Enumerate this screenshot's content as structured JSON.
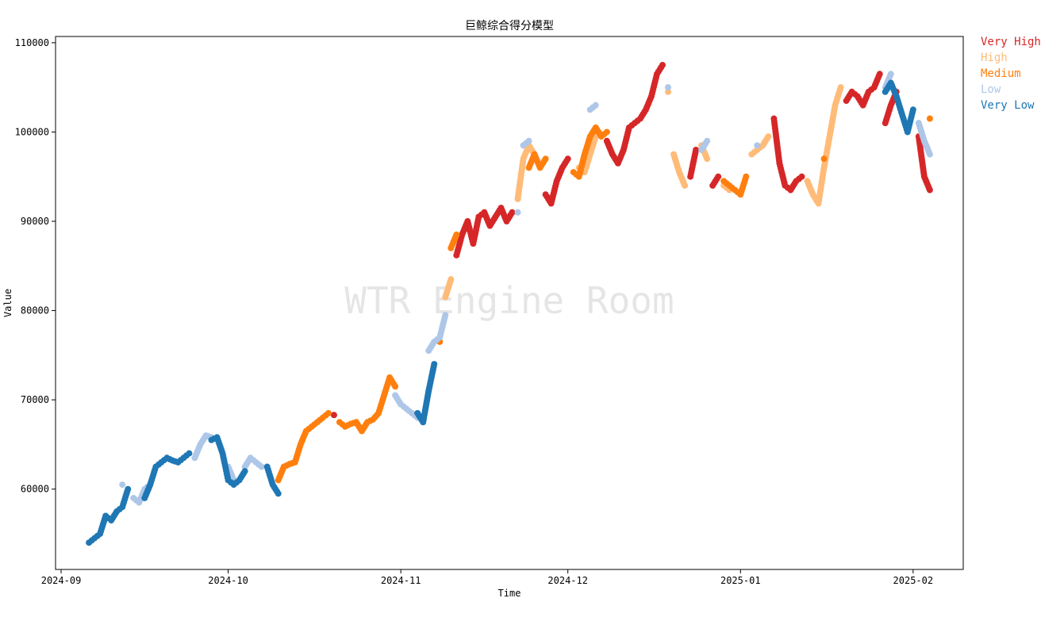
{
  "chart_data": {
    "type": "scatter",
    "title": "巨鲸综合得分模型",
    "xlabel": "Time",
    "ylabel": "Value",
    "watermark": "WTR Engine Room",
    "x_range": [
      "2024-08-31",
      "2025-02-10"
    ],
    "ylim": [
      51000,
      110700
    ],
    "x_ticks": [
      {
        "date": "2024-09-01",
        "label": "2024-09"
      },
      {
        "date": "2024-10-01",
        "label": "2024-10"
      },
      {
        "date": "2024-11-01",
        "label": "2024-11"
      },
      {
        "date": "2024-12-01",
        "label": "2024-12"
      },
      {
        "date": "2025-01-01",
        "label": "2025-01"
      },
      {
        "date": "2025-02-01",
        "label": "2025-02"
      }
    ],
    "y_ticks": [
      {
        "value": 60000,
        "label": "60000"
      },
      {
        "value": 70000,
        "label": "70000"
      },
      {
        "value": 80000,
        "label": "80000"
      },
      {
        "value": 90000,
        "label": "90000"
      },
      {
        "value": 100000,
        "label": "100000"
      },
      {
        "value": 110000,
        "label": "110000"
      }
    ],
    "grid": false,
    "legend_position": "outside-top-right",
    "series": [
      {
        "name": "Very High",
        "color": "#d62728",
        "points": [
          [
            "2024-10-20",
            68300
          ],
          [
            "2024-11-11",
            86200
          ],
          [
            "2024-11-12",
            88500
          ],
          [
            "2024-11-13",
            90000
          ],
          [
            "2024-11-14",
            87500
          ],
          [
            "2024-11-15",
            90500
          ],
          [
            "2024-11-16",
            91000
          ],
          [
            "2024-11-17",
            89500
          ],
          [
            "2024-11-18",
            90500
          ],
          [
            "2024-11-19",
            91500
          ],
          [
            "2024-11-20",
            90000
          ],
          [
            "2024-11-21",
            91000
          ],
          [
            "2024-11-27",
            93000
          ],
          [
            "2024-11-28",
            92000
          ],
          [
            "2024-11-29",
            94500
          ],
          [
            "2024-11-30",
            96000
          ],
          [
            "2024-12-01",
            97000
          ],
          [
            "2024-12-08",
            99000
          ],
          [
            "2024-12-09",
            97500
          ],
          [
            "2024-12-10",
            96500
          ],
          [
            "2024-12-11",
            98000
          ],
          [
            "2024-12-12",
            100500
          ],
          [
            "2024-12-13",
            101000
          ],
          [
            "2024-12-14",
            101500
          ],
          [
            "2024-12-15",
            102500
          ],
          [
            "2024-12-16",
            104000
          ],
          [
            "2024-12-17",
            106500
          ],
          [
            "2024-12-18",
            107500
          ],
          [
            "2024-12-23",
            95000
          ],
          [
            "2024-12-24",
            98000
          ],
          [
            "2024-12-27",
            94000
          ],
          [
            "2024-12-28",
            95000
          ],
          [
            "2025-01-07",
            101500
          ],
          [
            "2025-01-08",
            96500
          ],
          [
            "2025-01-09",
            94000
          ],
          [
            "2025-01-10",
            93500
          ],
          [
            "2025-01-11",
            94500
          ],
          [
            "2025-01-12",
            95000
          ],
          [
            "2025-01-20",
            103500
          ],
          [
            "2025-01-21",
            104500
          ],
          [
            "2025-01-22",
            104000
          ],
          [
            "2025-01-23",
            103000
          ],
          [
            "2025-01-24",
            104500
          ],
          [
            "2025-01-25",
            105000
          ],
          [
            "2025-01-26",
            106500
          ],
          [
            "2025-01-27",
            101000
          ],
          [
            "2025-01-28",
            103000
          ],
          [
            "2025-01-29",
            104500
          ],
          [
            "2025-02-02",
            99500
          ],
          [
            "2025-02-03",
            95000
          ],
          [
            "2025-02-04",
            93500
          ]
        ]
      },
      {
        "name": "High",
        "color": "#ffbb78",
        "points": [
          [
            "2024-11-09",
            81500
          ],
          [
            "2024-11-10",
            83500
          ],
          [
            "2024-11-22",
            92500
          ],
          [
            "2024-11-23",
            97000
          ],
          [
            "2024-11-24",
            98500
          ],
          [
            "2024-11-25",
            97500
          ],
          [
            "2024-12-03",
            96000
          ],
          [
            "2024-12-04",
            95500
          ],
          [
            "2024-12-05",
            97500
          ],
          [
            "2024-12-06",
            99500
          ],
          [
            "2024-12-19",
            104500
          ],
          [
            "2024-12-20",
            97500
          ],
          [
            "2024-12-21",
            95500
          ],
          [
            "2024-12-22",
            94000
          ],
          [
            "2024-12-25",
            98500
          ],
          [
            "2024-12-26",
            97000
          ],
          [
            "2024-12-29",
            94000
          ],
          [
            "2024-12-30",
            93500
          ],
          [
            "2025-01-03",
            97500
          ],
          [
            "2025-01-04",
            98000
          ],
          [
            "2025-01-05",
            98500
          ],
          [
            "2025-01-06",
            99500
          ],
          [
            "2025-01-13",
            94500
          ],
          [
            "2025-01-14",
            93000
          ],
          [
            "2025-01-15",
            92000
          ],
          [
            "2025-01-16",
            96000
          ],
          [
            "2025-01-17",
            99500
          ],
          [
            "2025-01-18",
            103000
          ],
          [
            "2025-01-19",
            105000
          ]
        ]
      },
      {
        "name": "Medium",
        "color": "#ff7f0e",
        "points": [
          [
            "2024-10-10",
            61000
          ],
          [
            "2024-10-11",
            62500
          ],
          [
            "2024-10-12",
            62800
          ],
          [
            "2024-10-13",
            63000
          ],
          [
            "2024-10-14",
            65000
          ],
          [
            "2024-10-15",
            66500
          ],
          [
            "2024-10-16",
            67000
          ],
          [
            "2024-10-17",
            67500
          ],
          [
            "2024-10-18",
            68000
          ],
          [
            "2024-10-19",
            68500
          ],
          [
            "2024-10-21",
            67500
          ],
          [
            "2024-10-22",
            67000
          ],
          [
            "2024-10-23",
            67300
          ],
          [
            "2024-10-24",
            67500
          ],
          [
            "2024-10-25",
            66500
          ],
          [
            "2024-10-26",
            67500
          ],
          [
            "2024-10-27",
            67800
          ],
          [
            "2024-10-28",
            68500
          ],
          [
            "2024-10-29",
            70500
          ],
          [
            "2024-10-30",
            72500
          ],
          [
            "2024-10-31",
            71500
          ],
          [
            "2024-11-08",
            76500
          ],
          [
            "2024-11-10",
            87000
          ],
          [
            "2024-11-11",
            88500
          ],
          [
            "2024-11-24",
            96000
          ],
          [
            "2024-11-25",
            97500
          ],
          [
            "2024-11-26",
            96000
          ],
          [
            "2024-11-27",
            97000
          ],
          [
            "2024-12-02",
            95500
          ],
          [
            "2024-12-03",
            95000
          ],
          [
            "2024-12-04",
            97500
          ],
          [
            "2024-12-05",
            99500
          ],
          [
            "2024-12-06",
            100500
          ],
          [
            "2024-12-07",
            99500
          ],
          [
            "2024-12-08",
            100000
          ],
          [
            "2024-12-29",
            94500
          ],
          [
            "2024-12-30",
            94000
          ],
          [
            "2024-12-31",
            93500
          ],
          [
            "2025-01-01",
            93000
          ],
          [
            "2025-01-02",
            95000
          ],
          [
            "2025-01-16",
            97000
          ],
          [
            "2025-02-04",
            101500
          ]
        ]
      },
      {
        "name": "Low",
        "color": "#aec7e8",
        "points": [
          [
            "2024-09-12",
            60500
          ],
          [
            "2024-09-14",
            59000
          ],
          [
            "2024-09-15",
            58500
          ],
          [
            "2024-09-16",
            60000
          ],
          [
            "2024-09-17",
            60500
          ],
          [
            "2024-09-25",
            63500
          ],
          [
            "2024-09-26",
            65000
          ],
          [
            "2024-09-27",
            66000
          ],
          [
            "2024-09-28",
            65800
          ],
          [
            "2024-10-01",
            62500
          ],
          [
            "2024-10-02",
            61000
          ],
          [
            "2024-10-04",
            62500
          ],
          [
            "2024-10-05",
            63500
          ],
          [
            "2024-10-06",
            63000
          ],
          [
            "2024-10-07",
            62500
          ],
          [
            "2024-10-31",
            70500
          ],
          [
            "2024-11-01",
            69500
          ],
          [
            "2024-11-02",
            69000
          ],
          [
            "2024-11-03",
            68500
          ],
          [
            "2024-11-04",
            68000
          ],
          [
            "2024-11-06",
            75500
          ],
          [
            "2024-11-07",
            76500
          ],
          [
            "2024-11-08",
            77000
          ],
          [
            "2024-11-09",
            79500
          ],
          [
            "2024-11-22",
            91000
          ],
          [
            "2024-11-23",
            98500
          ],
          [
            "2024-11-24",
            99000
          ],
          [
            "2024-12-05",
            102500
          ],
          [
            "2024-12-06",
            103000
          ],
          [
            "2024-12-19",
            105000
          ],
          [
            "2024-12-25",
            98000
          ],
          [
            "2024-12-26",
            99000
          ],
          [
            "2025-01-04",
            98500
          ],
          [
            "2025-01-27",
            105000
          ],
          [
            "2025-01-28",
            106500
          ],
          [
            "2025-02-02",
            101000
          ],
          [
            "2025-02-03",
            99000
          ],
          [
            "2025-02-04",
            97500
          ]
        ]
      },
      {
        "name": "Very Low",
        "color": "#1f77b4",
        "points": [
          [
            "2024-09-06",
            54000
          ],
          [
            "2024-09-07",
            54500
          ],
          [
            "2024-09-08",
            55000
          ],
          [
            "2024-09-09",
            57000
          ],
          [
            "2024-09-10",
            56500
          ],
          [
            "2024-09-11",
            57500
          ],
          [
            "2024-09-12",
            58000
          ],
          [
            "2024-09-13",
            60000
          ],
          [
            "2024-09-16",
            59000
          ],
          [
            "2024-09-17",
            60500
          ],
          [
            "2024-09-18",
            62500
          ],
          [
            "2024-09-19",
            63000
          ],
          [
            "2024-09-20",
            63500
          ],
          [
            "2024-09-21",
            63200
          ],
          [
            "2024-09-22",
            63000
          ],
          [
            "2024-09-23",
            63500
          ],
          [
            "2024-09-24",
            64000
          ],
          [
            "2024-09-28",
            65500
          ],
          [
            "2024-09-29",
            65800
          ],
          [
            "2024-09-30",
            64000
          ],
          [
            "2024-10-01",
            61000
          ],
          [
            "2024-10-02",
            60500
          ],
          [
            "2024-10-03",
            61000
          ],
          [
            "2024-10-04",
            62000
          ],
          [
            "2024-10-08",
            62500
          ],
          [
            "2024-10-09",
            60500
          ],
          [
            "2024-10-10",
            59500
          ],
          [
            "2024-11-04",
            68500
          ],
          [
            "2024-11-05",
            67500
          ],
          [
            "2024-11-06",
            71000
          ],
          [
            "2024-11-07",
            74000
          ],
          [
            "2025-01-27",
            104500
          ],
          [
            "2025-01-28",
            105500
          ],
          [
            "2025-01-29",
            104000
          ],
          [
            "2025-01-30",
            102000
          ],
          [
            "2025-01-31",
            100000
          ],
          [
            "2025-02-01",
            102500
          ]
        ]
      }
    ]
  }
}
